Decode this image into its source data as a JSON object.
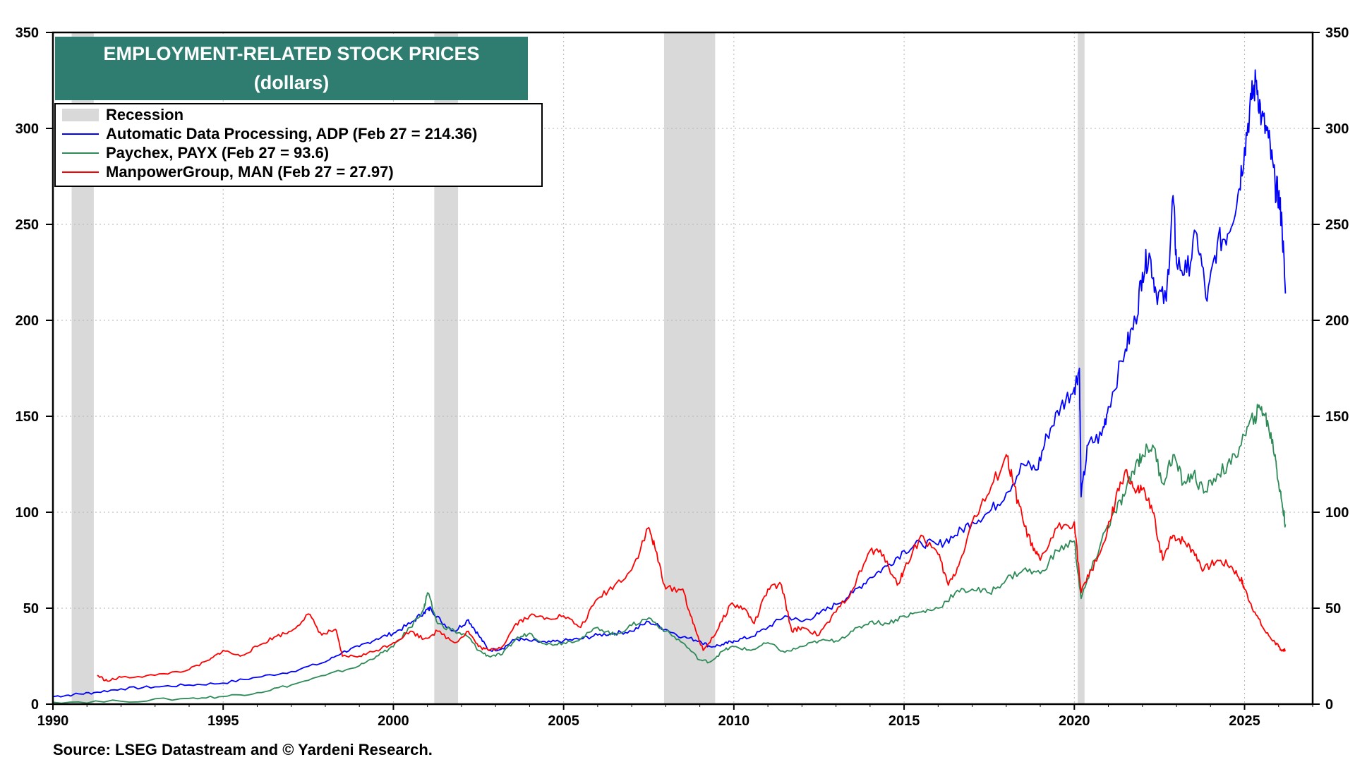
{
  "chart_data": {
    "type": "line",
    "title": "EMPLOYMENT-RELATED STOCK PRICES",
    "subtitle": "(dollars)",
    "source": "Source: LSEG Datastream and © Yardeni Research.",
    "x_ticks": [
      "1990",
      "1995",
      "2000",
      "2005",
      "2010",
      "2015",
      "2020",
      "2025"
    ],
    "y_ticks": [
      "0",
      "50",
      "100",
      "150",
      "200",
      "250",
      "300",
      "350"
    ],
    "xlim": [
      1990,
      2027
    ],
    "ylim": [
      0,
      350
    ],
    "grid": true,
    "legend_position": "top-left",
    "recession_label": "Recession",
    "recessions": [
      [
        1990.55,
        1991.2
      ],
      [
        2001.2,
        2001.9
      ],
      [
        2007.95,
        2009.45
      ],
      [
        2020.1,
        2020.3
      ]
    ],
    "series": [
      {
        "name": "Automatic Data Processing, ADP (Feb 27 = 214.36)",
        "color": "#0000ff",
        "points": [
          [
            1990.0,
            4
          ],
          [
            1990.6,
            5
          ],
          [
            1991.2,
            6
          ],
          [
            1992.0,
            8
          ],
          [
            1993.0,
            9
          ],
          [
            1994.0,
            10
          ],
          [
            1995.0,
            11
          ],
          [
            1996.0,
            14
          ],
          [
            1997.0,
            17
          ],
          [
            1998.0,
            22
          ],
          [
            1998.5,
            27
          ],
          [
            1999.0,
            30
          ],
          [
            1999.5,
            34
          ],
          [
            2000.0,
            37
          ],
          [
            2000.5,
            42
          ],
          [
            2000.9,
            48
          ],
          [
            2001.1,
            50
          ],
          [
            2001.4,
            43
          ],
          [
            2001.8,
            38
          ],
          [
            2002.2,
            44
          ],
          [
            2002.5,
            36
          ],
          [
            2002.8,
            28
          ],
          [
            2003.2,
            29
          ],
          [
            2003.6,
            34
          ],
          [
            2004.0,
            33
          ],
          [
            2004.5,
            32
          ],
          [
            2005.0,
            33
          ],
          [
            2005.5,
            34
          ],
          [
            2006.0,
            36
          ],
          [
            2006.5,
            37
          ],
          [
            2007.0,
            38
          ],
          [
            2007.5,
            43
          ],
          [
            2008.0,
            39
          ],
          [
            2008.5,
            35
          ],
          [
            2009.0,
            33
          ],
          [
            2009.3,
            30
          ],
          [
            2009.7,
            31
          ],
          [
            2010.0,
            33
          ],
          [
            2010.5,
            35
          ],
          [
            2011.0,
            40
          ],
          [
            2011.5,
            46
          ],
          [
            2012.0,
            43
          ],
          [
            2012.5,
            47
          ],
          [
            2013.0,
            52
          ],
          [
            2013.5,
            58
          ],
          [
            2014.0,
            66
          ],
          [
            2014.5,
            72
          ],
          [
            2015.0,
            80
          ],
          [
            2015.5,
            84
          ],
          [
            2016.0,
            83
          ],
          [
            2016.5,
            88
          ],
          [
            2017.0,
            95
          ],
          [
            2017.5,
            100
          ],
          [
            2018.0,
            110
          ],
          [
            2018.5,
            125
          ],
          [
            2018.9,
            122
          ],
          [
            2019.2,
            140
          ],
          [
            2019.6,
            155
          ],
          [
            2020.0,
            165
          ],
          [
            2020.15,
            175
          ],
          [
            2020.2,
            108
          ],
          [
            2020.4,
            135
          ],
          [
            2020.8,
            140
          ],
          [
            2021.0,
            155
          ],
          [
            2021.5,
            185
          ],
          [
            2021.8,
            200
          ],
          [
            2022.0,
            225
          ],
          [
            2022.2,
            235
          ],
          [
            2022.4,
            215
          ],
          [
            2022.7,
            210
          ],
          [
            2022.9,
            265
          ],
          [
            2023.0,
            230
          ],
          [
            2023.3,
            225
          ],
          [
            2023.6,
            245
          ],
          [
            2023.9,
            210
          ],
          [
            2024.2,
            240
          ],
          [
            2024.5,
            245
          ],
          [
            2024.8,
            265
          ],
          [
            2025.0,
            290
          ],
          [
            2025.2,
            315
          ],
          [
            2025.35,
            325
          ],
          [
            2025.5,
            305
          ],
          [
            2025.7,
            295
          ],
          [
            2025.9,
            270
          ],
          [
            2026.0,
            265
          ],
          [
            2026.1,
            250
          ],
          [
            2026.2,
            214
          ]
        ]
      },
      {
        "name": "Paychex, PAYX (Feb 27 = 93.6)",
        "color": "#2e8b57",
        "points": [
          [
            1990.0,
            1
          ],
          [
            1992.0,
            1.5
          ],
          [
            1994.0,
            3
          ],
          [
            1995.0,
            4
          ],
          [
            1996.0,
            6
          ],
          [
            1997.0,
            10
          ],
          [
            1998.0,
            15
          ],
          [
            1999.0,
            20
          ],
          [
            1999.5,
            25
          ],
          [
            2000.0,
            30
          ],
          [
            2000.5,
            40
          ],
          [
            2000.9,
            50
          ],
          [
            2001.0,
            58
          ],
          [
            2001.3,
            42
          ],
          [
            2001.8,
            38
          ],
          [
            2002.2,
            35
          ],
          [
            2002.5,
            28
          ],
          [
            2002.8,
            25
          ],
          [
            2003.2,
            26
          ],
          [
            2003.6,
            34
          ],
          [
            2004.0,
            37
          ],
          [
            2004.5,
            31
          ],
          [
            2005.0,
            32
          ],
          [
            2005.5,
            34
          ],
          [
            2006.0,
            40
          ],
          [
            2006.5,
            36
          ],
          [
            2007.0,
            41
          ],
          [
            2007.5,
            45
          ],
          [
            2008.0,
            38
          ],
          [
            2008.5,
            32
          ],
          [
            2009.0,
            23
          ],
          [
            2009.3,
            22
          ],
          [
            2009.7,
            28
          ],
          [
            2010.0,
            30
          ],
          [
            2010.5,
            28
          ],
          [
            2011.0,
            32
          ],
          [
            2011.5,
            27
          ],
          [
            2012.0,
            30
          ],
          [
            2012.5,
            33
          ],
          [
            2013.0,
            33
          ],
          [
            2013.5,
            38
          ],
          [
            2014.0,
            43
          ],
          [
            2014.5,
            42
          ],
          [
            2015.0,
            46
          ],
          [
            2015.5,
            48
          ],
          [
            2016.0,
            50
          ],
          [
            2016.5,
            58
          ],
          [
            2017.0,
            60
          ],
          [
            2017.5,
            58
          ],
          [
            2018.0,
            65
          ],
          [
            2018.5,
            70
          ],
          [
            2019.0,
            68
          ],
          [
            2019.5,
            80
          ],
          [
            2020.0,
            85
          ],
          [
            2020.2,
            55
          ],
          [
            2020.5,
            70
          ],
          [
            2020.9,
            90
          ],
          [
            2021.2,
            100
          ],
          [
            2021.5,
            110
          ],
          [
            2021.8,
            125
          ],
          [
            2022.0,
            130
          ],
          [
            2022.3,
            135
          ],
          [
            2022.6,
            115
          ],
          [
            2022.9,
            130
          ],
          [
            2023.2,
            115
          ],
          [
            2023.5,
            120
          ],
          [
            2023.8,
            110
          ],
          [
            2024.2,
            120
          ],
          [
            2024.6,
            125
          ],
          [
            2025.0,
            140
          ],
          [
            2025.3,
            150
          ],
          [
            2025.5,
            155
          ],
          [
            2025.7,
            145
          ],
          [
            2025.9,
            130
          ],
          [
            2026.0,
            115
          ],
          [
            2026.1,
            105
          ],
          [
            2026.2,
            93.6
          ]
        ]
      },
      {
        "name": "ManpowerGroup, MAN (Feb 27 = 27.97)",
        "color": "#ff0000",
        "points": [
          [
            1991.3,
            15
          ],
          [
            1991.6,
            12
          ],
          [
            1992.0,
            14
          ],
          [
            1993.0,
            15
          ],
          [
            1994.0,
            18
          ],
          [
            1994.6,
            23
          ],
          [
            1995.0,
            28
          ],
          [
            1995.5,
            25
          ],
          [
            1996.0,
            30
          ],
          [
            1996.5,
            35
          ],
          [
            1997.0,
            38
          ],
          [
            1997.5,
            47
          ],
          [
            1997.9,
            36
          ],
          [
            1998.3,
            39
          ],
          [
            1998.5,
            25
          ],
          [
            1999.0,
            25
          ],
          [
            1999.5,
            28
          ],
          [
            2000.0,
            32
          ],
          [
            2000.5,
            38
          ],
          [
            2000.9,
            34
          ],
          [
            2001.3,
            38
          ],
          [
            2001.8,
            32
          ],
          [
            2002.2,
            38
          ],
          [
            2002.5,
            30
          ],
          [
            2002.8,
            28
          ],
          [
            2003.2,
            30
          ],
          [
            2003.6,
            42
          ],
          [
            2004.0,
            46
          ],
          [
            2004.5,
            45
          ],
          [
            2005.0,
            46
          ],
          [
            2005.5,
            40
          ],
          [
            2006.0,
            55
          ],
          [
            2006.5,
            62
          ],
          [
            2007.0,
            70
          ],
          [
            2007.5,
            92
          ],
          [
            2007.7,
            80
          ],
          [
            2008.0,
            60
          ],
          [
            2008.5,
            60
          ],
          [
            2008.8,
            42
          ],
          [
            2009.1,
            28
          ],
          [
            2009.5,
            38
          ],
          [
            2009.9,
            52
          ],
          [
            2010.3,
            50
          ],
          [
            2010.6,
            42
          ],
          [
            2011.0,
            60
          ],
          [
            2011.4,
            62
          ],
          [
            2011.7,
            38
          ],
          [
            2012.0,
            40
          ],
          [
            2012.5,
            36
          ],
          [
            2013.0,
            48
          ],
          [
            2013.5,
            60
          ],
          [
            2014.0,
            80
          ],
          [
            2014.4,
            78
          ],
          [
            2014.8,
            62
          ],
          [
            2015.0,
            70
          ],
          [
            2015.5,
            88
          ],
          [
            2016.0,
            78
          ],
          [
            2016.3,
            62
          ],
          [
            2016.6,
            72
          ],
          [
            2017.0,
            95
          ],
          [
            2017.5,
            110
          ],
          [
            2018.0,
            130
          ],
          [
            2018.2,
            115
          ],
          [
            2018.5,
            95
          ],
          [
            2018.8,
            80
          ],
          [
            2019.0,
            75
          ],
          [
            2019.5,
            92
          ],
          [
            2020.0,
            95
          ],
          [
            2020.2,
            58
          ],
          [
            2020.5,
            70
          ],
          [
            2020.9,
            85
          ],
          [
            2021.2,
            105
          ],
          [
            2021.5,
            122
          ],
          [
            2021.8,
            110
          ],
          [
            2022.0,
            112
          ],
          [
            2022.3,
            100
          ],
          [
            2022.6,
            75
          ],
          [
            2022.9,
            88
          ],
          [
            2023.2,
            85
          ],
          [
            2023.5,
            80
          ],
          [
            2023.8,
            70
          ],
          [
            2024.2,
            75
          ],
          [
            2024.6,
            72
          ],
          [
            2024.9,
            65
          ],
          [
            2025.0,
            60
          ],
          [
            2025.3,
            48
          ],
          [
            2025.6,
            38
          ],
          [
            2025.9,
            32
          ],
          [
            2026.0,
            30
          ],
          [
            2026.1,
            28
          ],
          [
            2026.2,
            27.97
          ]
        ]
      }
    ]
  }
}
